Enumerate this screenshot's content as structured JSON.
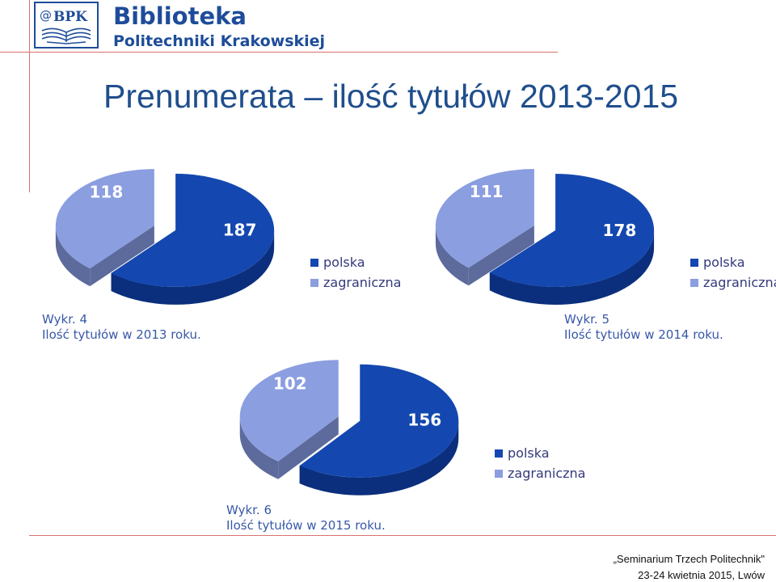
{
  "header": {
    "logo_text": "BPK",
    "brand_line1": "Biblioteka",
    "brand_line2": "Politechniki Krakowskiej"
  },
  "title": "Prenumerata – ilość tytułów 2013-2015",
  "colors": {
    "polska": "#1448b0",
    "zagraniczna": "#8b9ee0",
    "brand": "#1e4c9a",
    "rule": "#d9726f"
  },
  "chart_data": [
    {
      "type": "pie",
      "categories": [
        "polska",
        "zagraniczna"
      ],
      "values": [
        187,
        118
      ],
      "legend": [
        "polska",
        "zagraniczna"
      ],
      "legend_position": "right",
      "caption_line1": "Wykr. 4",
      "caption_line2": "Ilość tytułów w 2013 roku."
    },
    {
      "type": "pie",
      "categories": [
        "polska",
        "zagraniczna"
      ],
      "values": [
        178,
        111
      ],
      "legend": [
        "polska",
        "zagraniczna"
      ],
      "legend_position": "right",
      "caption_line1": "Wykr. 5",
      "caption_line2": "Ilość tytułów w 2014 roku."
    },
    {
      "type": "pie",
      "categories": [
        "polska",
        "zagraniczna"
      ],
      "values": [
        156,
        102
      ],
      "legend": [
        "polska",
        "zagraniczna"
      ],
      "legend_position": "right",
      "caption_line1": "Wykr. 6",
      "caption_line2": "Ilość tytułów w 2015 roku."
    }
  ],
  "footer": {
    "line1": "„Seminarium Trzech Politechnik\"",
    "line2": "23-24 kwietnia 2015, Lwów"
  }
}
